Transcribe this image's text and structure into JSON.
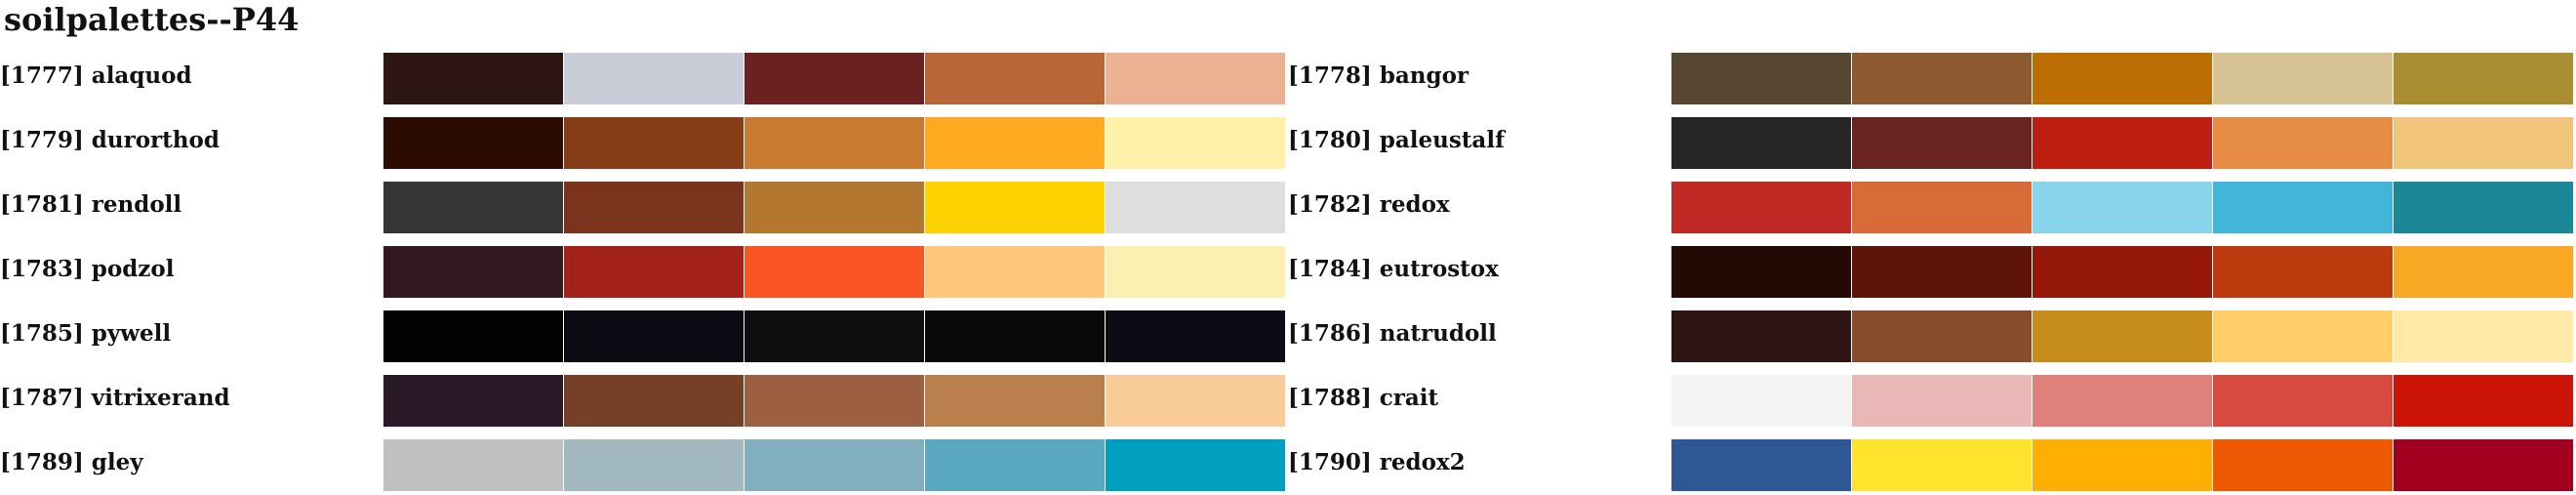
{
  "title": "soilpalettes--P44",
  "palettes": [
    {
      "label": "[1777] alaquod",
      "colors": [
        "#2E1614",
        "#C8CDD7",
        "#6B211F",
        "#B86638",
        "#EAB292"
      ]
    },
    {
      "label": "[1778] bangor",
      "colors": [
        "#564632",
        "#8B5A2F",
        "#BC6D03",
        "#D6C294",
        "#A88D31"
      ]
    },
    {
      "label": "[1779] durorthod",
      "colors": [
        "#2C0C00",
        "#843D16",
        "#C87A31",
        "#FFAA21",
        "#FFF1A8"
      ]
    },
    {
      "label": "[1780] paleustalf",
      "colors": [
        "#262626",
        "#6A2420",
        "#BE1E10",
        "#E78C45",
        "#F0C47A"
      ]
    },
    {
      "label": "[1781] rendoll",
      "colors": [
        "#363636",
        "#7A341E",
        "#B4772F",
        "#FFD300",
        "#DEDEDE"
      ]
    },
    {
      "label": "[1782] redox",
      "colors": [
        "#BF2A24",
        "#D86B37",
        "#88D4EA",
        "#42B6D8",
        "#1A8896"
      ]
    },
    {
      "label": "[1783] podzol",
      "colors": [
        "#351922",
        "#A2221A",
        "#F95624",
        "#FFC779",
        "#FAF0B2"
      ]
    },
    {
      "label": "[1784] eutrostox",
      "colors": [
        "#230A04",
        "#5F1409",
        "#96180B",
        "#BD3A0E",
        "#F8A822"
      ]
    },
    {
      "label": "[1785] pywell",
      "colors": [
        "#040303",
        "#0C0A12",
        "#0E0D10",
        "#0A0909",
        "#0D0C16"
      ]
    },
    {
      "label": "[1786] natrudoll",
      "colors": [
        "#2F1414",
        "#864C2C",
        "#C78D1C",
        "#FFCE68",
        "#FFEAA8"
      ]
    },
    {
      "label": "[1787] vitrixerand",
      "colors": [
        "#2A1A27",
        "#763F27",
        "#9D5F42",
        "#B9804D",
        "#FACC9A"
      ]
    },
    {
      "label": "[1788] crait",
      "colors": [
        "#F4F4F4",
        "#E9B7B5",
        "#E0807B",
        "#D74A3F",
        "#CC1308"
      ]
    },
    {
      "label": "[1789] gley",
      "colors": [
        "#C0C0C0",
        "#A2B8BF",
        "#82AFBF",
        "#59A8C0",
        "#009FBF"
      ]
    },
    {
      "label": "[1790] redox2",
      "colors": [
        "#2E5893",
        "#FFE32C",
        "#FEAF02",
        "#EE5A04",
        "#A1001F"
      ]
    }
  ]
}
